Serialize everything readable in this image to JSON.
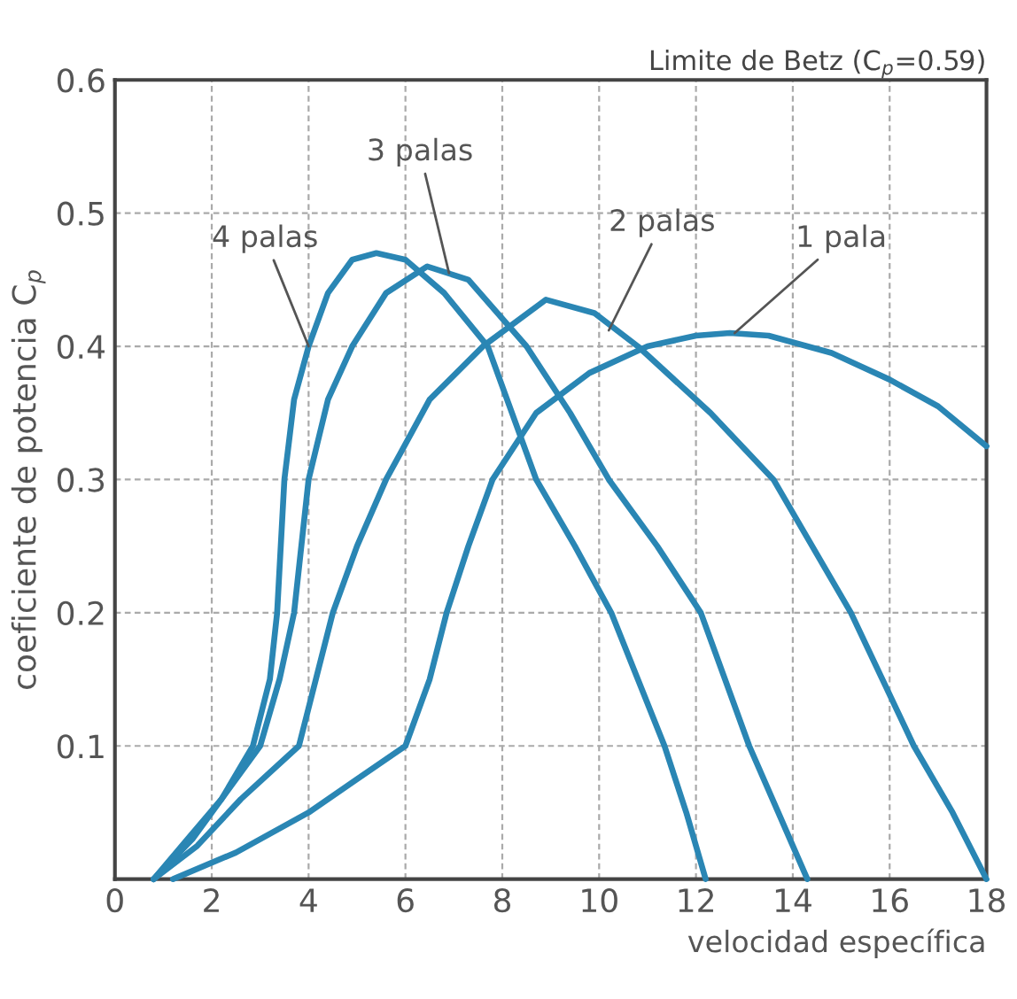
{
  "chart_data": {
    "type": "line",
    "title": "Limite de Betz (C$_{p}$=0.59)",
    "xlabel": "velocidad específica",
    "ylabel": "coeficiente de potencia C$_{p}$",
    "xlim": [
      0,
      18
    ],
    "ylim": [
      0,
      0.6
    ],
    "xticks": [
      0,
      2,
      4,
      6,
      8,
      10,
      12,
      14,
      16,
      18
    ],
    "yticks": [
      {
        "value": 0,
        "label": null
      },
      0.1,
      0.2,
      0.3,
      0.4,
      0.5,
      0.6
    ],
    "grid": true,
    "line_style": "solid",
    "marker": "none",
    "series": [
      {
        "color": "#2a86b4",
        "x": [
          0.8,
          1.5,
          2.2,
          2.85,
          3.2,
          3.35,
          3.5,
          3.7,
          4.0,
          4.4,
          4.9,
          5.4,
          6.0,
          6.8,
          7.7,
          8.7,
          9.5,
          10.25,
          10.8,
          11.35,
          11.8,
          12.2
        ],
        "values": [
          0,
          0.03,
          0.06,
          0.1,
          0.15,
          0.2,
          0.3,
          0.36,
          0.4,
          0.44,
          0.465,
          0.47,
          0.465,
          0.44,
          0.4,
          0.3,
          0.25,
          0.2,
          0.15,
          0.1,
          0.05,
          0
        ]
      },
      {
        "color": "#2a86b4",
        "x": [
          0.8,
          1.6,
          2.4,
          3.0,
          3.4,
          3.7,
          4.0,
          4.4,
          4.9,
          5.6,
          6.45,
          7.3,
          8.5,
          9.4,
          10.2,
          11.2,
          12.1,
          13.1,
          13.7,
          14.3
        ],
        "values": [
          0,
          0.03,
          0.07,
          0.1,
          0.15,
          0.2,
          0.3,
          0.36,
          0.4,
          0.44,
          0.46,
          0.45,
          0.4,
          0.35,
          0.3,
          0.25,
          0.2,
          0.1,
          0.05,
          0
        ]
      },
      {
        "color": "#2a86b4",
        "x": [
          0.8,
          1.7,
          2.6,
          3.2,
          3.8,
          4.5,
          5.0,
          5.6,
          6.5,
          7.6,
          8.9,
          9.9,
          10.8,
          12.3,
          13.6,
          15.2,
          16.5,
          17.3,
          18
        ],
        "values": [
          0,
          0.025,
          0.06,
          0.08,
          0.1,
          0.2,
          0.25,
          0.3,
          0.36,
          0.4,
          0.435,
          0.425,
          0.4,
          0.35,
          0.3,
          0.2,
          0.1,
          0.05,
          0
        ]
      },
      {
        "color": "#2a86b4",
        "x": [
          1.2,
          2.5,
          4.0,
          5.0,
          6.0,
          6.5,
          6.85,
          7.3,
          7.8,
          8.7,
          9.8,
          11.0,
          12.0,
          12.7,
          13.5,
          14.8,
          16.0,
          17.0,
          18
        ],
        "values": [
          0,
          0.02,
          0.05,
          0.075,
          0.1,
          0.15,
          0.2,
          0.25,
          0.3,
          0.35,
          0.38,
          0.4,
          0.408,
          0.41,
          0.408,
          0.395,
          0.375,
          0.355,
          0.325
        ]
      }
    ],
    "annotations": [
      {
        "text": "4 palas",
        "x": 4.0,
        "y": 0.4
      },
      {
        "text": "3 palas",
        "x": 6.9,
        "y": 0.455
      },
      {
        "text": "2 palas",
        "x": 10.2,
        "y": 0.412
      },
      {
        "text": "1 pala",
        "x": 12.8,
        "y": 0.41
      }
    ]
  }
}
